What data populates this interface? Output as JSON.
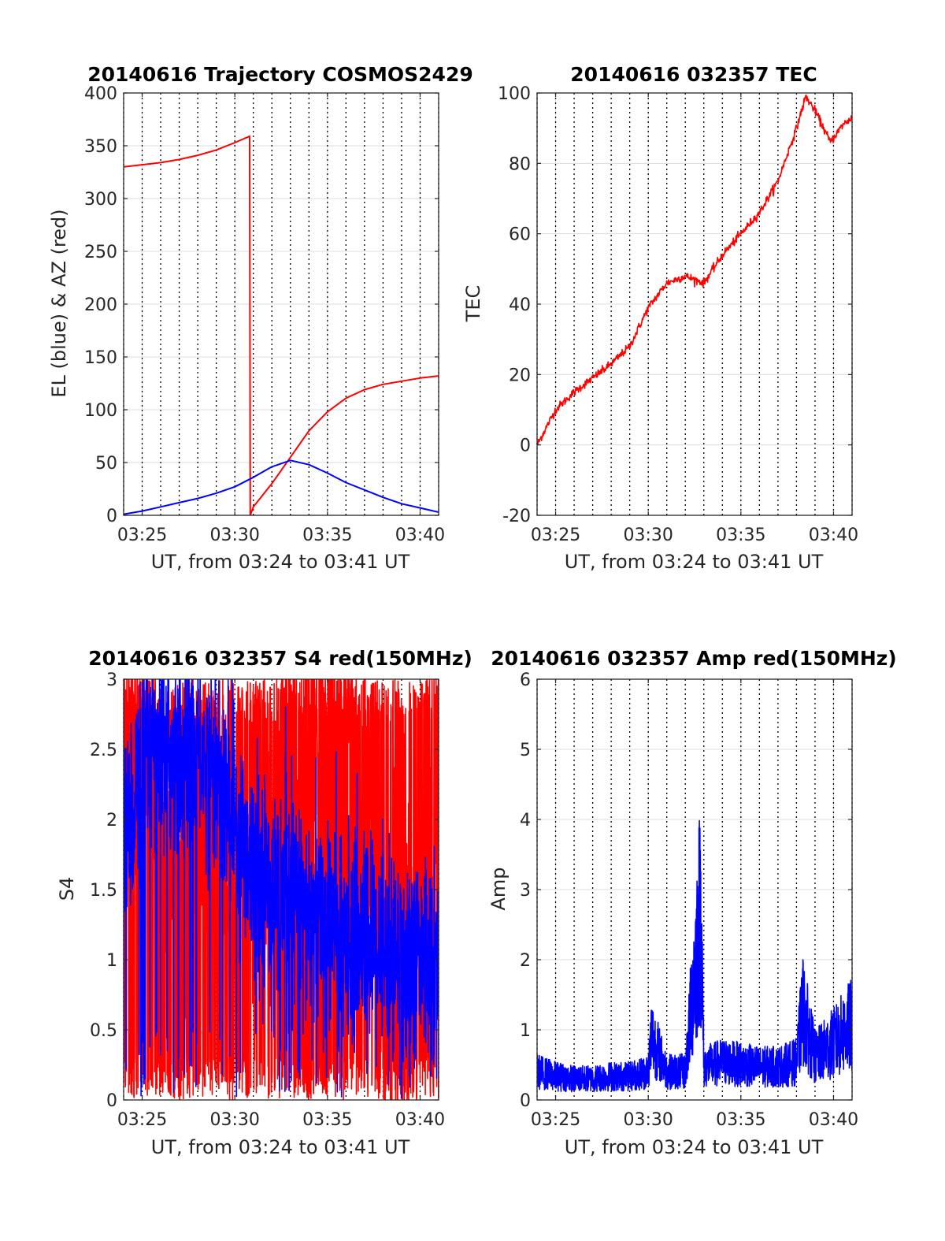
{
  "chart_data": [
    {
      "type": "line",
      "title": "20140616 Trajectory COSMOS2429",
      "xlabel": "UT, from 03:24 to 03:41 UT",
      "ylabel": "EL (blue) & AZ (red)",
      "xlim": [
        "03:24",
        "03:41"
      ],
      "ylim": [
        0,
        400
      ],
      "xticks": [
        "03:25",
        "03:30",
        "03:35",
        "03:40"
      ],
      "yticks": [
        0,
        50,
        100,
        150,
        200,
        250,
        300,
        350,
        400
      ],
      "grid": true,
      "minor_time_grid": "dotted, 1 min",
      "series": [
        {
          "color": "#ff0000",
          "x": [
            "03:24",
            "03:25",
            "03:26",
            "03:27",
            "03:28",
            "03:29",
            "03:30",
            "03:30:48",
            "03:30:50",
            "03:31",
            "03:32",
            "03:33",
            "03:34",
            "03:35",
            "03:36",
            "03:37",
            "03:38",
            "03:39",
            "03:40",
            "03:41"
          ],
          "y": [
            330,
            332,
            334,
            337,
            341,
            346,
            353,
            359,
            0,
            8,
            30,
            55,
            80,
            98,
            111,
            119,
            124,
            127,
            130,
            132
          ]
        },
        {
          "color": "#0000ff",
          "x": [
            "03:24",
            "03:25",
            "03:26",
            "03:27",
            "03:28",
            "03:29",
            "03:30",
            "03:31",
            "03:32",
            "03:33",
            "03:34",
            "03:35",
            "03:36",
            "03:37",
            "03:38",
            "03:39",
            "03:40",
            "03:41"
          ],
          "y": [
            1,
            4,
            8,
            12,
            16,
            21,
            27,
            36,
            46,
            52,
            48,
            40,
            31,
            24,
            17,
            11,
            7,
            3
          ]
        }
      ]
    },
    {
      "type": "line",
      "title": "20140616 032357 TEC",
      "xlabel": "UT, from 03:24 to 03:41 UT",
      "ylabel": "TEC",
      "xlim": [
        "03:24",
        "03:41"
      ],
      "ylim": [
        -20,
        100
      ],
      "xticks": [
        "03:25",
        "03:30",
        "03:35",
        "03:40"
      ],
      "yticks": [
        -20,
        0,
        20,
        40,
        60,
        80,
        100
      ],
      "grid": true,
      "minor_time_grid": "dotted, 1 min",
      "series": [
        {
          "color": "#ff0000",
          "x": [
            "03:24",
            "03:25",
            "03:26",
            "03:27",
            "03:28",
            "03:29",
            "03:30",
            "03:31",
            "03:32",
            "03:33",
            "03:34",
            "03:35",
            "03:36",
            "03:37",
            "03:38",
            "03:38:30",
            "03:39",
            "03:39:50",
            "03:40:30",
            "03:41"
          ],
          "y": [
            0,
            10,
            15,
            19,
            23,
            28,
            39,
            46,
            48,
            46,
            54,
            60,
            66,
            75,
            90,
            99,
            95,
            86,
            91,
            93
          ]
        }
      ]
    },
    {
      "type": "line",
      "title": "20140616 032357 S4 red(150MHz)",
      "xlabel": "UT, from 03:24 to 03:41 UT",
      "ylabel": "S4",
      "xlim": [
        "03:24",
        "03:41"
      ],
      "ylim": [
        0,
        3
      ],
      "xticks": [
        "03:25",
        "03:30",
        "03:35",
        "03:40"
      ],
      "yticks": [
        0,
        0.5,
        1,
        1.5,
        2,
        2.5,
        3
      ],
      "grid": true,
      "minor_time_grid": "dotted, 1 min",
      "series": [
        {
          "color": "#ff0000",
          "x": [
            "03:24",
            "03:25",
            "03:26",
            "03:27",
            "03:28",
            "03:29",
            "03:30",
            "03:31",
            "03:32",
            "03:33",
            "03:34",
            "03:35",
            "03:36",
            "03:37",
            "03:38",
            "03:39",
            "03:40",
            "03:41"
          ],
          "y": [
            2.8,
            2.4,
            1.8,
            1.5,
            1.6,
            1.8,
            1.7,
            1.8,
            1.6,
            2.6,
            2.7,
            2.8,
            2.6,
            2.1,
            0.8,
            0.7,
            1.8,
            2.3
          ]
        },
        {
          "color": "#0000ff",
          "x": [
            "03:24",
            "03:25",
            "03:26",
            "03:27",
            "03:28",
            "03:29",
            "03:30",
            "03:31",
            "03:32",
            "03:33",
            "03:34",
            "03:35",
            "03:36",
            "03:37",
            "03:38",
            "03:39",
            "03:40",
            "03:41"
          ],
          "y": [
            1.8,
            2.4,
            2.5,
            2.4,
            2.5,
            2.3,
            2.0,
            1.7,
            1.5,
            1.45,
            1.3,
            1.25,
            1.2,
            1.15,
            1.1,
            1.05,
            1.0,
            1.1
          ]
        }
      ]
    },
    {
      "type": "line",
      "title": "20140616 032357 Amp red(150MHz)",
      "xlabel": "UT, from 03:24 to 03:41 UT",
      "ylabel": "Amp",
      "xlim": [
        "03:24",
        "03:41"
      ],
      "ylim": [
        0,
        6
      ],
      "xticks": [
        "03:25",
        "03:30",
        "03:35",
        "03:40"
      ],
      "yticks": [
        0,
        1,
        2,
        3,
        4,
        5,
        6
      ],
      "grid": true,
      "minor_time_grid": "dotted, 1 min",
      "series": [
        {
          "color": "#0000ff",
          "x": [
            "03:24",
            "03:25",
            "03:26",
            "03:27",
            "03:28",
            "03:29",
            "03:30",
            "03:30:10",
            "03:31",
            "03:32",
            "03:32:50",
            "03:33",
            "03:34",
            "03:35",
            "03:36",
            "03:37",
            "03:38",
            "03:38:20",
            "03:39",
            "03:40",
            "03:41"
          ],
          "y": [
            0.6,
            0.5,
            0.45,
            0.45,
            0.5,
            0.5,
            0.6,
            1.35,
            0.6,
            0.6,
            4.1,
            0.7,
            0.8,
            0.75,
            0.7,
            0.7,
            0.8,
            1.9,
            0.9,
            1.2,
            1.6
          ]
        }
      ]
    }
  ]
}
